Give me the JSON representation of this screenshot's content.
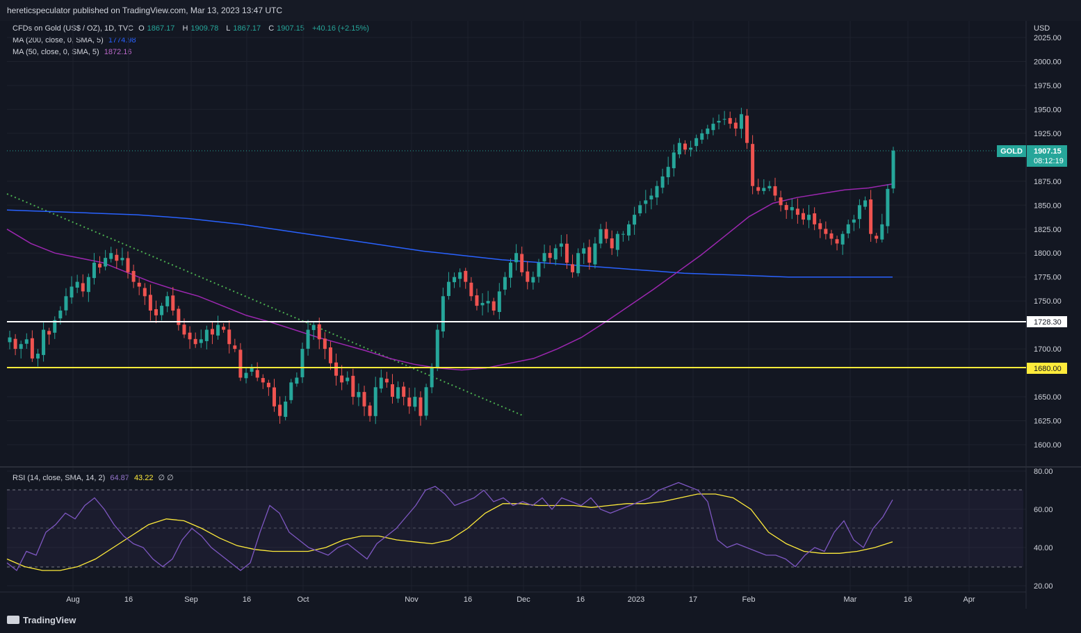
{
  "header": {
    "publisher": "hereticspeculator published on TradingView.com, Mar 13, 2023 13:47 UTC"
  },
  "symbol": {
    "name": "CFDs on Gold (US$ / OZ), 1D, TVC",
    "open_label": "O",
    "open": "1867.17",
    "high_label": "H",
    "high": "1909.78",
    "low_label": "L",
    "low": "1867.17",
    "close_label": "C",
    "close": "1907.15",
    "change": "+40.16 (+2.15%)"
  },
  "indicators": {
    "ma200": {
      "label": "MA (200, close, 0, SMA, 5)",
      "value": "1774.98",
      "color": "#2962ff"
    },
    "ma50": {
      "label": "MA (50, close, 0, SMA, 5)",
      "value": "1872.16",
      "color": "#9c27b0"
    },
    "rsi": {
      "label": "RSI (14, close, SMA, 14, 2)",
      "value": "64.87",
      "ma_value": "43.22",
      "extra": "∅ ∅"
    }
  },
  "price_axis": {
    "currency": "USD",
    "ticks": [
      "2025.00",
      "2000.00",
      "1975.00",
      "1950.00",
      "1925.00",
      "1875.00",
      "1850.00",
      "1825.00",
      "1800.00",
      "1775.00",
      "1750.00",
      "1700.00",
      "1650.00",
      "1625.00",
      "1600.00"
    ],
    "last_price_symbol": "GOLD",
    "last_price": "1907.15",
    "countdown": "08:12:19",
    "level_white": "1728.30",
    "level_yellow": "1680.00"
  },
  "rsi_axis": {
    "ticks": [
      "80.00",
      "60.00",
      "40.00",
      "20.00"
    ]
  },
  "time_axis": {
    "labels": [
      "Aug",
      "16",
      "Sep",
      "16",
      "Oct",
      "Nov",
      "16",
      "Dec",
      "16",
      "2023",
      "17",
      "Feb",
      "Mar",
      "16",
      "Apr"
    ]
  },
  "brand": "TradingView",
  "colors": {
    "up": "#26a69a",
    "down": "#ef5350",
    "background": "#131722",
    "rsi_line": "#7e57c2",
    "rsi_ma": "#ffeb3b"
  },
  "chart_data": {
    "type": "candlestick",
    "price_ylim": [
      1580,
      2035
    ],
    "rsi_ylim": [
      20,
      80
    ],
    "horizontal_levels": [
      1728.3,
      1680.0
    ],
    "closes": [
      1712,
      1700,
      1705,
      1710,
      1690,
      1695,
      1720,
      1715,
      1730,
      1740,
      1755,
      1765,
      1770,
      1760,
      1775,
      1790,
      1785,
      1795,
      1800,
      1792,
      1795,
      1780,
      1770,
      1765,
      1755,
      1740,
      1735,
      1745,
      1755,
      1740,
      1725,
      1715,
      1710,
      1705,
      1710,
      1720,
      1715,
      1725,
      1720,
      1705,
      1700,
      1670,
      1675,
      1680,
      1670,
      1665,
      1660,
      1640,
      1630,
      1645,
      1665,
      1670,
      1700,
      1720,
      1725,
      1710,
      1700,
      1685,
      1672,
      1665,
      1670,
      1650,
      1655,
      1640,
      1630,
      1660,
      1670,
      1665,
      1650,
      1660,
      1650,
      1640,
      1650,
      1630,
      1660,
      1680,
      1720,
      1755,
      1770,
      1775,
      1780,
      1770,
      1755,
      1745,
      1748,
      1750,
      1740,
      1760,
      1775,
      1790,
      1800,
      1780,
      1770,
      1775,
      1790,
      1800,
      1795,
      1805,
      1810,
      1790,
      1780,
      1800,
      1805,
      1790,
      1810,
      1825,
      1815,
      1805,
      1820,
      1820,
      1830,
      1840,
      1850,
      1855,
      1860,
      1870,
      1880,
      1890,
      1905,
      1915,
      1908,
      1910,
      1920,
      1925,
      1930,
      1935,
      1938,
      1940,
      1935,
      1930,
      1945,
      1915,
      1870,
      1865,
      1868,
      1870,
      1860,
      1850,
      1845,
      1848,
      1840,
      1835,
      1840,
      1830,
      1825,
      1820,
      1815,
      1810,
      1820,
      1830,
      1835,
      1850,
      1855,
      1820,
      1815,
      1830,
      1867,
      1907
    ],
    "ma200": [
      1845,
      1844,
      1843,
      1842,
      1841,
      1840,
      1838,
      1836,
      1833,
      1830,
      1826,
      1822,
      1818,
      1814,
      1810,
      1806,
      1802,
      1799,
      1796,
      1793,
      1791,
      1789,
      1787,
      1785,
      1783,
      1781,
      1779,
      1778,
      1777,
      1776,
      1775,
      1775,
      1775,
      1775,
      1774.98
    ],
    "ma50": [
      1825,
      1810,
      1800,
      1795,
      1790,
      1780,
      1770,
      1762,
      1755,
      1745,
      1735,
      1728,
      1720,
      1712,
      1705,
      1698,
      1690,
      1684,
      1680,
      1678,
      1680,
      1685,
      1690,
      1700,
      1712,
      1728,
      1745,
      1762,
      1780,
      1798,
      1818,
      1838,
      1852,
      1858,
      1862,
      1866,
      1868,
      1872.16
    ],
    "rsi": [
      32,
      28,
      38,
      36,
      48,
      52,
      58,
      55,
      62,
      66,
      60,
      52,
      46,
      42,
      40,
      34,
      30,
      34,
      44,
      50,
      46,
      40,
      36,
      32,
      28,
      32,
      48,
      62,
      58,
      48,
      44,
      40,
      38,
      36,
      40,
      42,
      38,
      34,
      42,
      46,
      50,
      56,
      62,
      70,
      72,
      68,
      62,
      64,
      66,
      70,
      64,
      66,
      62,
      64,
      62,
      66,
      60,
      66,
      64,
      62,
      66,
      60,
      58,
      60,
      62,
      64,
      66,
      70,
      72,
      74,
      72,
      70,
      64,
      44,
      40,
      42,
      40,
      38,
      36,
      36,
      34,
      30,
      36,
      40,
      38,
      48,
      54,
      44,
      40,
      50,
      56,
      65
    ],
    "rsi_ma": [
      34,
      30,
      28,
      28,
      30,
      34,
      40,
      46,
      52,
      55,
      54,
      50,
      45,
      41,
      39,
      38,
      38,
      38,
      40,
      44,
      46,
      46,
      44,
      43,
      42,
      44,
      50,
      58,
      63,
      63,
      62,
      62,
      62,
      61,
      62,
      63,
      63,
      64,
      66,
      68,
      68,
      66,
      60,
      48,
      42,
      38,
      37,
      37,
      38,
      40,
      43
    ]
  }
}
